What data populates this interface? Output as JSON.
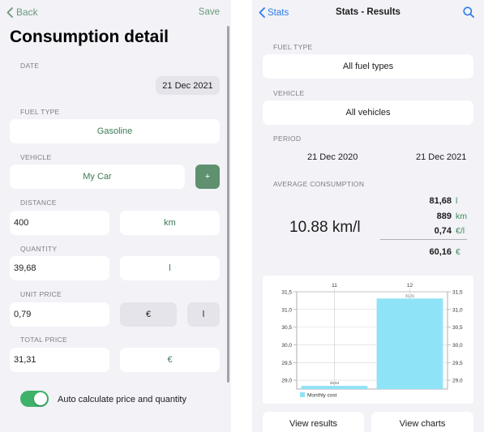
{
  "left": {
    "nav": {
      "back_label": "Back",
      "save_label": "Save"
    },
    "title": "Consumption detail",
    "date": {
      "label": "DATE",
      "value": "21 Dec 2021"
    },
    "fuel_type": {
      "label": "FUEL TYPE",
      "value": "Gasoline"
    },
    "vehicle": {
      "label": "VEHICLE",
      "value": "My Car",
      "add_label": "+"
    },
    "distance": {
      "label": "DISTANCE",
      "value": "400",
      "unit": "km"
    },
    "quantity": {
      "label": "QUANTITY",
      "value": "39,68",
      "unit": "l"
    },
    "unit_price": {
      "label": "UNIT PRICE",
      "value": "0,79",
      "currency": "€",
      "per_unit": "l"
    },
    "total_price": {
      "label": "TOTAL PRICE",
      "value": "31,31",
      "currency": "€"
    },
    "auto_calc": {
      "label": "Auto calculate price and quantity",
      "on": true
    }
  },
  "right": {
    "nav": {
      "back_label": "Stats",
      "title": "Stats - Results",
      "search_icon": "magnifying-glass-icon"
    },
    "fuel_type": {
      "label": "FUEL TYPE",
      "value": "All fuel types"
    },
    "vehicle": {
      "label": "VEHICLE",
      "value": "All vehicles"
    },
    "period": {
      "label": "PERIOD",
      "from": "21 Dec 2020",
      "to": "21 Dec 2021"
    },
    "average": {
      "label": "AVERAGE CONSUMPTION",
      "main_value": "10.88 km/l",
      "rows": [
        {
          "value": "81,68",
          "unit": "l"
        },
        {
          "value": "889",
          "unit": "km"
        },
        {
          "value": "0,74",
          "unit": "€/l"
        },
        {
          "value": "60,16",
          "unit": "€"
        }
      ]
    },
    "buttons": {
      "view_results": "View results",
      "view_charts": "View charts"
    }
  },
  "chart_data": {
    "type": "bar",
    "categories": [
      "11",
      "12"
    ],
    "series": [
      {
        "name": "Monthly cost",
        "values": [
          28.84,
          31.31
        ],
        "labels": [
          "28,84",
          "31,31"
        ],
        "color": "#8fe3f7"
      }
    ],
    "ylim": [
      28.75,
      31.5
    ],
    "yticks": [
      29.0,
      29.5,
      30.0,
      30.5,
      31.0,
      31.5
    ],
    "ytick_labels": [
      "29,0",
      "29,5",
      "30,0",
      "30,5",
      "31,0",
      "31,5"
    ],
    "legend": "bottom-left",
    "grid": true
  },
  "colors": {
    "accent_green": "#3d7a55",
    "accent_blue": "#2b7de9",
    "toggle_on": "#3fb26a",
    "bar": "#8fe3f7"
  }
}
